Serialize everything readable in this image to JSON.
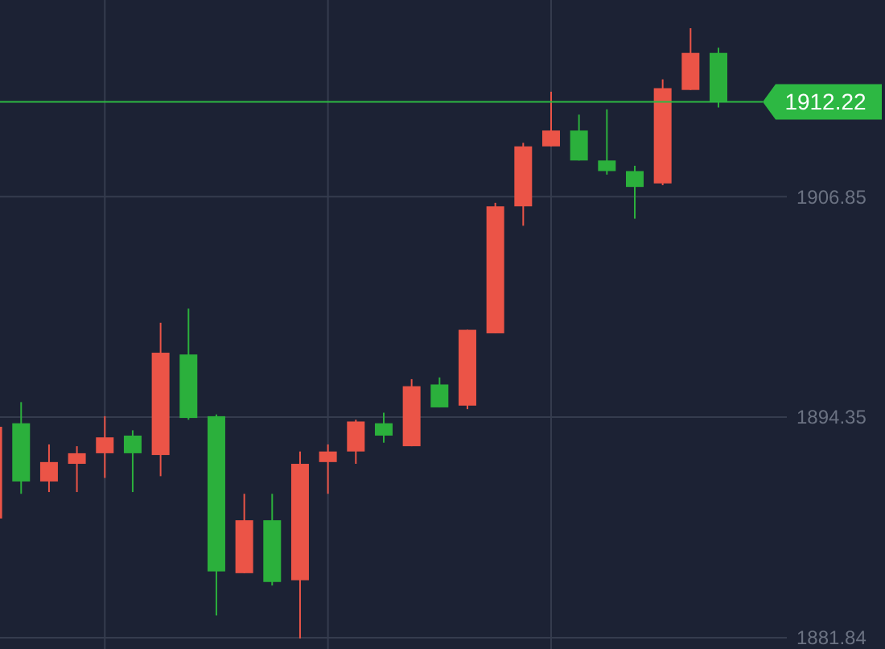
{
  "chart_data": {
    "type": "candlestick",
    "categories": [
      null,
      null,
      null,
      null,
      null,
      null,
      null,
      null,
      null,
      null,
      null,
      null,
      null,
      null,
      null,
      null,
      null,
      null,
      null,
      null,
      null,
      null,
      null,
      null,
      null,
      null,
      null
    ],
    "ohlc": [
      [
        1888.6,
        1893.8,
        1888.6,
        1893.8
      ],
      [
        1894.0,
        1895.2,
        1890.0,
        1890.7
      ],
      [
        1890.7,
        1892.8,
        1890.1,
        1891.8
      ],
      [
        1891.7,
        1892.7,
        1890.1,
        1892.3
      ],
      [
        1892.3,
        1894.4,
        1890.9,
        1893.2
      ],
      [
        1893.3,
        1893.6,
        1890.1,
        1892.3
      ],
      [
        1892.2,
        1899.7,
        1891.0,
        1898.0
      ],
      [
        1897.9,
        1900.5,
        1894.2,
        1894.3
      ],
      [
        1894.4,
        1894.5,
        1883.1,
        1885.6
      ],
      [
        1885.5,
        1890.0,
        1885.5,
        1888.5
      ],
      [
        1888.5,
        1890.0,
        1884.8,
        1885.0
      ],
      [
        1885.1,
        1892.4,
        1881.8,
        1891.7
      ],
      [
        1891.8,
        1892.8,
        1890.0,
        1892.4
      ],
      [
        1892.4,
        1894.2,
        1891.7,
        1894.1
      ],
      [
        1894.0,
        1894.6,
        1892.9,
        1893.3
      ],
      [
        1892.7,
        1896.5,
        1892.7,
        1896.1
      ],
      [
        1896.2,
        1896.6,
        1894.9,
        1894.9
      ],
      [
        1895.0,
        1899.3,
        1894.8,
        1899.3
      ],
      [
        1899.1,
        1906.5,
        1899.1,
        1906.3
      ],
      [
        1906.3,
        1909.9,
        1905.2,
        1909.7
      ],
      [
        1909.7,
        1912.8,
        1909.7,
        1910.6
      ],
      [
        1910.6,
        1911.5,
        1908.9,
        1908.9
      ],
      [
        1908.9,
        1911.8,
        1908.1,
        1908.3
      ],
      [
        1908.3,
        1908.6,
        1905.6,
        1907.4
      ],
      [
        1907.6,
        1913.5,
        1907.5,
        1913.0
      ],
      [
        1912.9,
        1916.4,
        1912.9,
        1915.0
      ],
      [
        1915.0,
        1915.3,
        1911.9,
        1912.22
      ]
    ],
    "colors": [
      "#eb5447",
      "#2bb03c",
      "#eb5447",
      "#eb5447",
      "#eb5447",
      "#2bb03c",
      "#eb5447",
      "#2bb03c",
      "#2bb03c",
      "#eb5447",
      "#2bb03c",
      "#eb5447",
      "#eb5447",
      "#eb5447",
      "#2bb03c",
      "#eb5447",
      "#2bb03c",
      "#eb5447",
      "#eb5447",
      "#eb5447",
      "#eb5447",
      "#2bb03c",
      "#2bb03c",
      "#2bb03c",
      "#eb5447",
      "#eb5447",
      "#2bb03c"
    ],
    "ylim": [
      1881.2,
      1918.0
    ],
    "yticks": [
      1906.85,
      1894.35,
      1881.84
    ],
    "grid": true,
    "ref_lines": [
      {
        "axis": "y",
        "value": 1912.22,
        "label": "1912.22",
        "color": "#2db843"
      }
    ]
  }
}
